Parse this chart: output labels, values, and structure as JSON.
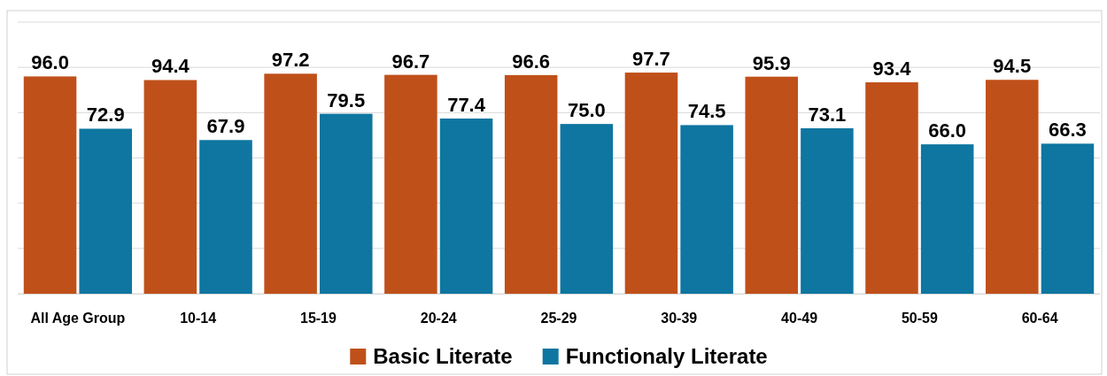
{
  "chart_data": {
    "type": "bar",
    "categories": [
      "All Age Group",
      "10-14",
      "15-19",
      "20-24",
      "25-29",
      "30-39",
      "40-49",
      "50-59",
      "60-64"
    ],
    "series": [
      {
        "name": "Basic Literate",
        "color": "#c0501a",
        "values": [
          96.0,
          94.4,
          97.2,
          96.7,
          96.6,
          97.7,
          95.9,
          93.4,
          94.5
        ],
        "value_labels": [
          "96.0",
          "94.4",
          "97.2",
          "96.7",
          "96.6",
          "97.7",
          "95.9",
          "93.4",
          "94.5"
        ]
      },
      {
        "name": "Functionaly Literate",
        "color": "#0e76a0",
        "values": [
          72.9,
          67.9,
          79.5,
          77.4,
          75.0,
          74.5,
          73.1,
          66.0,
          66.3
        ],
        "value_labels": [
          "72.9",
          "67.9",
          "79.5",
          "77.4",
          "75.0",
          "74.5",
          "73.1",
          "66.0",
          "66.3"
        ]
      }
    ],
    "ylim": [
      0,
      120
    ],
    "yticks": [
      {
        "value": 0,
        "label": null
      },
      {
        "value": 20,
        "label": null
      },
      {
        "value": 40,
        "label": null
      },
      {
        "value": 60,
        "label": null
      },
      {
        "value": 80,
        "label": null
      },
      {
        "value": 100,
        "label": null
      },
      {
        "value": 120,
        "label": null
      }
    ],
    "tick_labels": "x",
    "grid": "y",
    "legend": "bottom"
  }
}
